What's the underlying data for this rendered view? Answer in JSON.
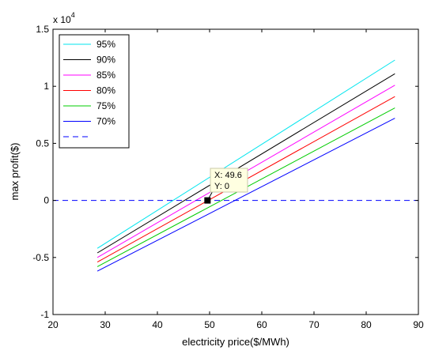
{
  "chart_data": {
    "type": "line",
    "xlabel": "electricity price($/MWh)",
    "ylabel": "max profit($)",
    "exponent_label": "x 10",
    "exponent_power": "4",
    "xlim": [
      20,
      90
    ],
    "ylim": [
      -1,
      1.5
    ],
    "xticks": [
      20,
      30,
      40,
      50,
      60,
      70,
      80,
      90
    ],
    "yticks": [
      -1,
      -0.5,
      0,
      0.5,
      1,
      1.5
    ],
    "xtick_labels": [
      "20",
      "30",
      "40",
      "50",
      "60",
      "70",
      "80",
      "90"
    ],
    "ytick_labels": [
      "-1",
      "-0.5",
      "0",
      "0.5",
      "1",
      "1.5"
    ],
    "grid": false,
    "legend_position": "top-left",
    "series": [
      {
        "name": "95%",
        "color": "#00e5ee",
        "dash": false,
        "x": [
          28.5,
          85.5
        ],
        "y": [
          -0.42,
          1.23
        ]
      },
      {
        "name": "90%",
        "color": "#000000",
        "dash": false,
        "x": [
          28.5,
          85.5
        ],
        "y": [
          -0.46,
          1.11
        ]
      },
      {
        "name": "85%",
        "color": "#ff00ff",
        "dash": false,
        "x": [
          28.5,
          85.5
        ],
        "y": [
          -0.5,
          1.01
        ]
      },
      {
        "name": "80%",
        "color": "#ff0000",
        "dash": false,
        "x": [
          28.5,
          85.5
        ],
        "y": [
          -0.54,
          0.91
        ]
      },
      {
        "name": "75%",
        "color": "#00cc00",
        "dash": false,
        "x": [
          28.5,
          85.5
        ],
        "y": [
          -0.58,
          0.81
        ]
      },
      {
        "name": "70%",
        "color": "#0000ff",
        "dash": false,
        "x": [
          28.5,
          85.5
        ],
        "y": [
          -0.62,
          0.72
        ]
      },
      {
        "name": "",
        "color": "#0000ff",
        "dash": true,
        "x": [
          20,
          90
        ],
        "y": [
          0,
          0
        ]
      }
    ],
    "datatip": {
      "x": 49.6,
      "y": 0,
      "x_text": "X: 49.6",
      "y_text": "Y: 0"
    }
  }
}
